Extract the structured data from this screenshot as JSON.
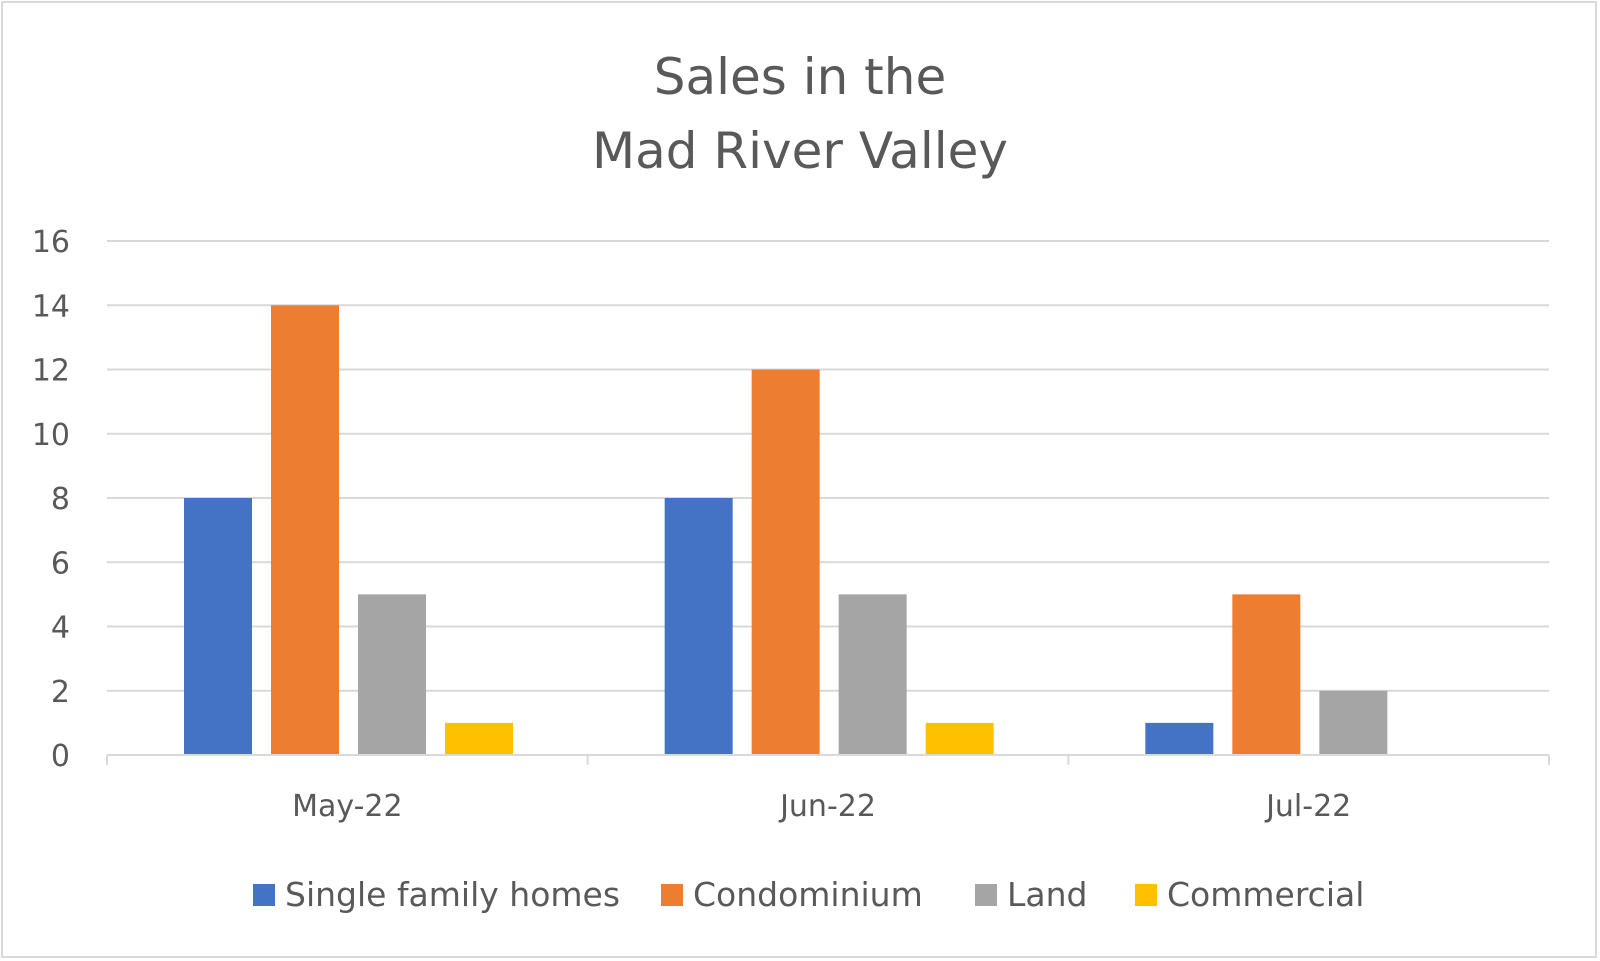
{
  "chart_data": {
    "type": "bar",
    "title": [
      "Sales in the",
      "Mad River Valley"
    ],
    "xlabel": "",
    "ylabel": "",
    "categories": [
      "May-22",
      "Jun-22",
      "Jul-22"
    ],
    "series": [
      {
        "name": "Single family homes",
        "color": "#4472c4",
        "values": [
          8,
          8,
          1
        ]
      },
      {
        "name": "Condominium",
        "color": "#ed7d31",
        "values": [
          14,
          12,
          5
        ]
      },
      {
        "name": "Land",
        "color": "#a5a5a5",
        "values": [
          5,
          5,
          2
        ]
      },
      {
        "name": "Commercial",
        "color": "#ffc000",
        "values": [
          1,
          1,
          0
        ]
      }
    ],
    "ylim": [
      0,
      16
    ],
    "yticks": [
      0,
      2,
      4,
      6,
      8,
      10,
      12,
      14,
      16
    ],
    "grid": true,
    "legend": "bottom"
  }
}
